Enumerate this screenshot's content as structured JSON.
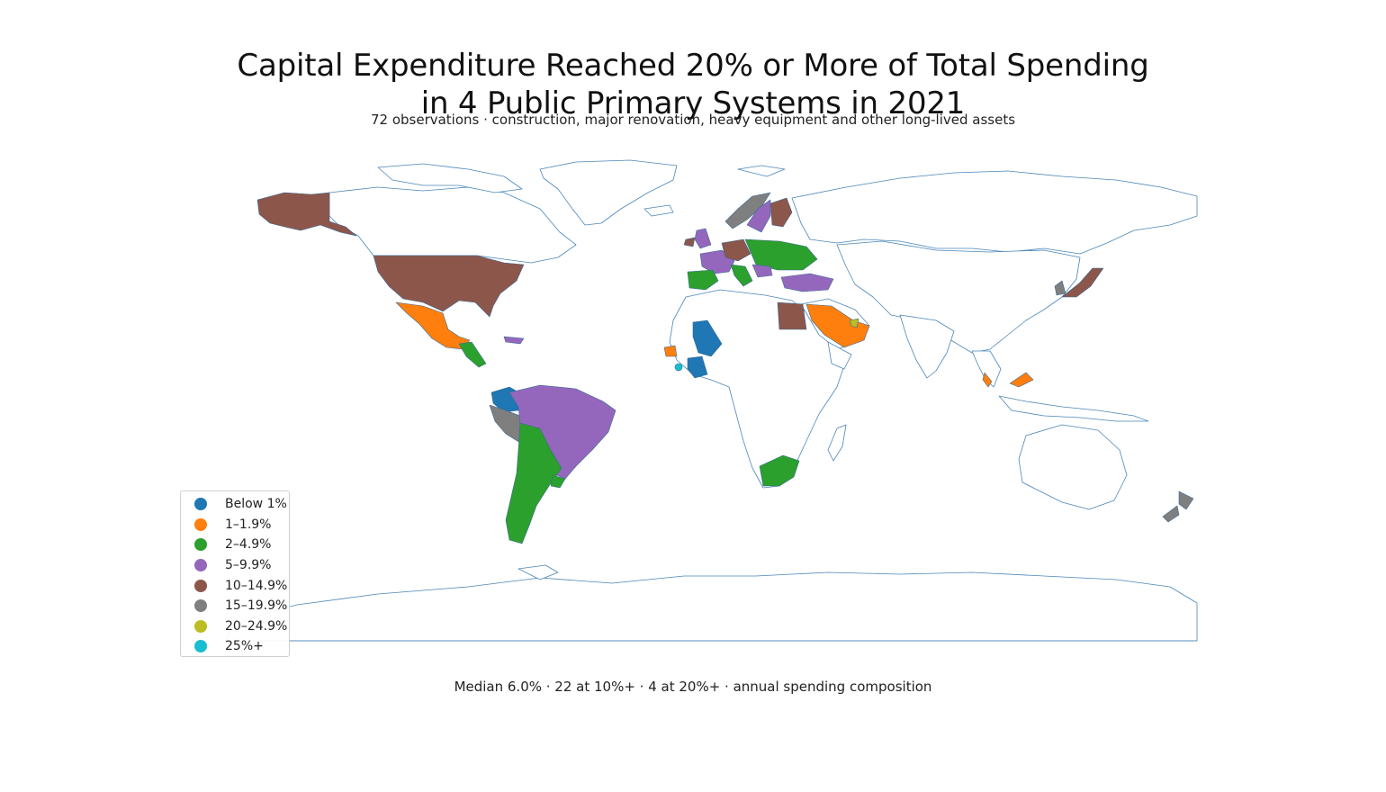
{
  "title_lines": [
    "Capital Expenditure Reached 20% or More of Total Spending",
    "in 4 Public Primary Systems in 2021"
  ],
  "subtitle": "72 observations · construction, major renovation, heavy equipment and other long-lived assets",
  "footer": "Median 6.0% · 22 at 10%+ · 4 at 20%+ · annual spending composition",
  "chart_data": {
    "type": "choropleth",
    "projection": "equirectangular",
    "year": 2021,
    "metric": "capital expenditure share of total spending (%)",
    "legend_placement": "bottom-left",
    "bins": [
      {
        "label": "Below 1%",
        "color": "#1f77b4"
      },
      {
        "label": "1–1.9%",
        "color": "#ff7f0e"
      },
      {
        "label": "2–4.9%",
        "color": "#2ca02c"
      },
      {
        "label": "5–9.9%",
        "color": "#9467bd"
      },
      {
        "label": "10–14.9%",
        "color": "#8c564b"
      },
      {
        "label": "15–19.9%",
        "color": "#7f7f7f"
      },
      {
        "label": "20–24.9%",
        "color": "#bcbd22"
      },
      {
        "label": "25%+",
        "color": "#17becf"
      }
    ],
    "colors": {
      "background_land_fill": "#ffffff",
      "background_land_stroke": "#4a86b8"
    }
  }
}
